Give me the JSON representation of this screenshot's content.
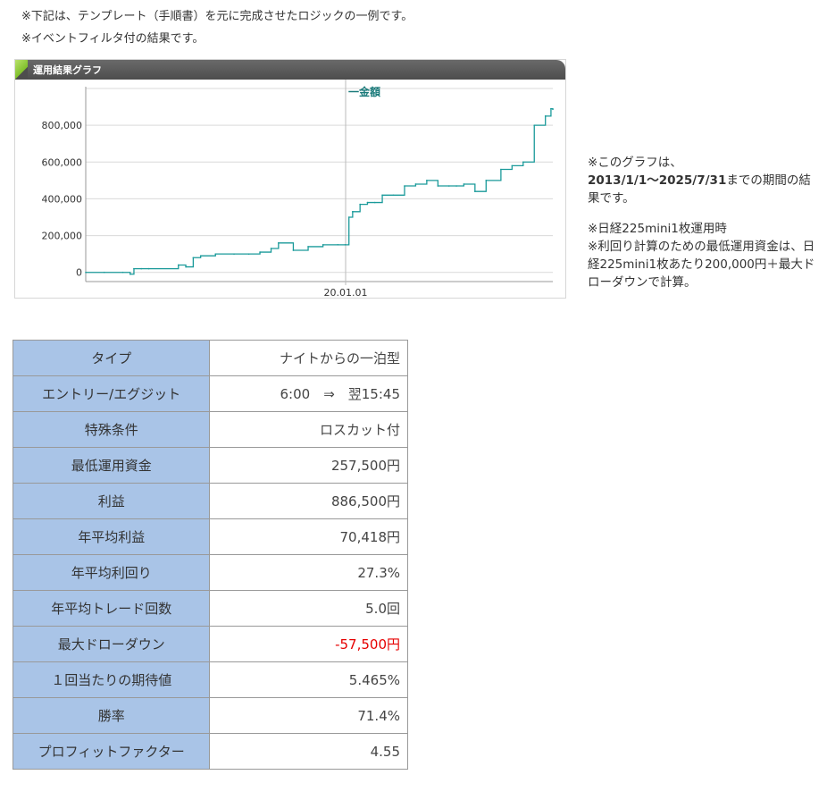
{
  "intro": {
    "line1": "※下記は、テンプレート（手順書）を元に完成させたロジックの一例です。",
    "line2": "※イベントフィルタ付の結果です。"
  },
  "graph": {
    "title": "運用結果グラフ",
    "legend_label": "一金額",
    "line_color": "#1a9a9a",
    "cursor_label": "20.01.01"
  },
  "chart_data": {
    "type": "line",
    "title": "運用結果グラフ",
    "xlabel": "",
    "ylabel": "",
    "ylim": [
      -50000,
      1000000
    ],
    "yticks": [
      0,
      200000,
      400000,
      600000,
      800000
    ],
    "ytick_labels": [
      "0",
      "200,000",
      "400,000",
      "600,000",
      "800,000"
    ],
    "xtick_labels": [
      "20.01.01"
    ],
    "legend": "top-center",
    "grid": true,
    "series": [
      {
        "name": "金額",
        "x": [
          0,
          0.5,
          1.0,
          1.2,
          1.3,
          1.5,
          1.7,
          2.5,
          2.7,
          2.9,
          3.1,
          3.5,
          4.0,
          4.4,
          4.7,
          5.0,
          5.2,
          5.6,
          6.0,
          6.4,
          6.8,
          7.0,
          7.1,
          7.2,
          7.4,
          7.6,
          7.8,
          8.0,
          8.3,
          8.6,
          8.9,
          9.2,
          9.5,
          9.8,
          10.0,
          10.2,
          10.5,
          10.8,
          11.2,
          11.5,
          11.8,
          12.1,
          12.4,
          12.55,
          12.6
        ],
        "y": [
          0,
          0,
          0,
          -10000,
          20000,
          20000,
          20000,
          40000,
          30000,
          80000,
          90000,
          100000,
          100000,
          100000,
          110000,
          130000,
          160000,
          120000,
          140000,
          150000,
          150000,
          150000,
          300000,
          330000,
          370000,
          380000,
          380000,
          420000,
          420000,
          470000,
          480000,
          500000,
          470000,
          470000,
          470000,
          480000,
          440000,
          500000,
          560000,
          580000,
          600000,
          800000,
          850000,
          890000,
          886500
        ]
      }
    ]
  },
  "notes": {
    "graph_note_prefix": "※このグラフは、",
    "graph_note_period": "2013/1/1〜2025/7/31",
    "graph_note_suffix": "までの期間の結果です。",
    "capital_note_line1": "※日経225mini1枚運用時",
    "capital_note_line2": "※利回り計算のための最低運用資金は、日経225mini1枚あたり200,000円＋最大ドローダウンで計算。"
  },
  "results_table": {
    "negative_color": "#e60000",
    "rows": [
      {
        "label": "タイプ",
        "value": "ナイトからの一泊型"
      },
      {
        "label": "エントリー/エグジット",
        "value": "6:00　⇒　翌15:45"
      },
      {
        "label": "特殊条件",
        "value": "ロスカット付"
      },
      {
        "label": "最低運用資金",
        "value": "257,500円"
      },
      {
        "label": "利益",
        "value": "886,500円"
      },
      {
        "label": "年平均利益",
        "value": "70,418円"
      },
      {
        "label": "年平均利回り",
        "value": "27.3%"
      },
      {
        "label": "年平均トレード回数",
        "value": "5.0回"
      },
      {
        "label": "最大ドローダウン",
        "value": "-57,500円"
      },
      {
        "label": "１回当たりの期待値",
        "value": "5.465%"
      },
      {
        "label": "勝率",
        "value": "71.4%"
      },
      {
        "label": "プロフィットファクター",
        "value": "4.55"
      }
    ]
  }
}
